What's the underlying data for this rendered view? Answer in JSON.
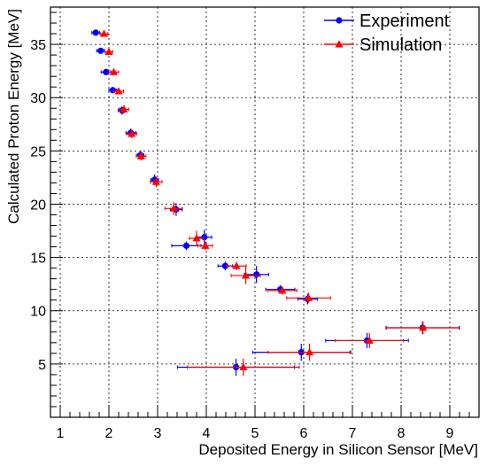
{
  "chart_data": {
    "type": "scatter",
    "title": "",
    "xlabel": "Deposited Energy in Silicon Sensor [MeV]",
    "ylabel": "Calculated Proton Energy [MeV]",
    "xlim": [
      0.8,
      9.6
    ],
    "ylim": [
      0.0,
      38.5
    ],
    "x_ticks": [
      "1",
      "2",
      "3",
      "4",
      "5",
      "6",
      "7",
      "8",
      "9"
    ],
    "y_ticks": [
      "5",
      "10",
      "15",
      "20",
      "25",
      "30",
      "35"
    ],
    "grid": true,
    "legend_position": "top-right",
    "series": [
      {
        "name": "Experiment",
        "color": "#0000ff",
        "marker": "circle",
        "points": [
          {
            "x": 1.73,
            "y": 36.1,
            "xerr": 0.08,
            "yerr": 0.25
          },
          {
            "x": 1.83,
            "y": 34.4,
            "xerr": 0.08,
            "yerr": 0.25
          },
          {
            "x": 1.94,
            "y": 32.4,
            "xerr": 0.1,
            "yerr": 0.3
          },
          {
            "x": 2.08,
            "y": 30.7,
            "xerr": 0.08,
            "yerr": 0.3
          },
          {
            "x": 2.27,
            "y": 28.8,
            "xerr": 0.08,
            "yerr": 0.4
          },
          {
            "x": 2.45,
            "y": 26.7,
            "xerr": 0.1,
            "yerr": 0.4
          },
          {
            "x": 2.65,
            "y": 24.6,
            "xerr": 0.07,
            "yerr": 0.4
          },
          {
            "x": 2.94,
            "y": 22.3,
            "xerr": 0.08,
            "yerr": 0.5
          },
          {
            "x": 3.38,
            "y": 19.5,
            "xerr": 0.12,
            "yerr": 0.6
          },
          {
            "x": 3.59,
            "y": 16.1,
            "xerr": 0.3,
            "yerr": 0.4
          },
          {
            "x": 3.96,
            "y": 16.9,
            "xerr": 0.15,
            "yerr": 0.7
          },
          {
            "x": 4.39,
            "y": 14.2,
            "xerr": 0.15,
            "yerr": 0.4
          },
          {
            "x": 5.03,
            "y": 13.4,
            "xerr": 0.25,
            "yerr": 0.8
          },
          {
            "x": 5.52,
            "y": 12.0,
            "xerr": 0.3,
            "yerr": 0.4
          },
          {
            "x": 6.08,
            "y": 11.1,
            "xerr": 0.2,
            "yerr": 0.5
          },
          {
            "x": 5.95,
            "y": 6.1,
            "xerr": 1.0,
            "yerr": 0.8
          },
          {
            "x": 7.3,
            "y": 7.2,
            "xerr": 0.85,
            "yerr": 0.7
          },
          {
            "x": 8.44,
            "y": 8.4,
            "xerr": 0.75,
            "yerr": 0.6
          },
          {
            "x": 4.61,
            "y": 4.7,
            "xerr": 1.2,
            "yerr": 0.8
          }
        ]
      },
      {
        "name": "Simulation",
        "color": "#ff0000",
        "marker": "triangle",
        "points": [
          {
            "x": 1.9,
            "y": 36.0,
            "xerr": 0.08,
            "yerr": 0.25
          },
          {
            "x": 2.0,
            "y": 34.3,
            "xerr": 0.08,
            "yerr": 0.25
          },
          {
            "x": 2.1,
            "y": 32.4,
            "xerr": 0.1,
            "yerr": 0.3
          },
          {
            "x": 2.2,
            "y": 30.6,
            "xerr": 0.1,
            "yerr": 0.3
          },
          {
            "x": 2.31,
            "y": 28.9,
            "xerr": 0.1,
            "yerr": 0.4
          },
          {
            "x": 2.47,
            "y": 26.6,
            "xerr": 0.1,
            "yerr": 0.4
          },
          {
            "x": 2.66,
            "y": 24.5,
            "xerr": 0.1,
            "yerr": 0.4
          },
          {
            "x": 2.97,
            "y": 22.1,
            "xerr": 0.12,
            "yerr": 0.5
          },
          {
            "x": 3.33,
            "y": 19.6,
            "xerr": 0.18,
            "yerr": 0.6
          },
          {
            "x": 3.8,
            "y": 16.8,
            "xerr": 0.15,
            "yerr": 0.7
          },
          {
            "x": 3.98,
            "y": 16.1,
            "xerr": 0.15,
            "yerr": 0.4
          },
          {
            "x": 4.62,
            "y": 14.2,
            "xerr": 0.2,
            "yerr": 0.4
          },
          {
            "x": 4.81,
            "y": 13.3,
            "xerr": 0.3,
            "yerr": 0.8
          },
          {
            "x": 5.56,
            "y": 11.9,
            "xerr": 0.3,
            "yerr": 0.4
          },
          {
            "x": 6.1,
            "y": 11.2,
            "xerr": 0.45,
            "yerr": 0.5
          },
          {
            "x": 6.12,
            "y": 6.1,
            "xerr": 0.85,
            "yerr": 0.8
          },
          {
            "x": 7.35,
            "y": 7.2,
            "xerr": 0.7,
            "yerr": 0.7
          },
          {
            "x": 8.45,
            "y": 8.4,
            "xerr": 0.75,
            "yerr": 0.6
          },
          {
            "x": 4.76,
            "y": 4.7,
            "xerr": 1.15,
            "yerr": 0.8
          }
        ]
      }
    ]
  }
}
